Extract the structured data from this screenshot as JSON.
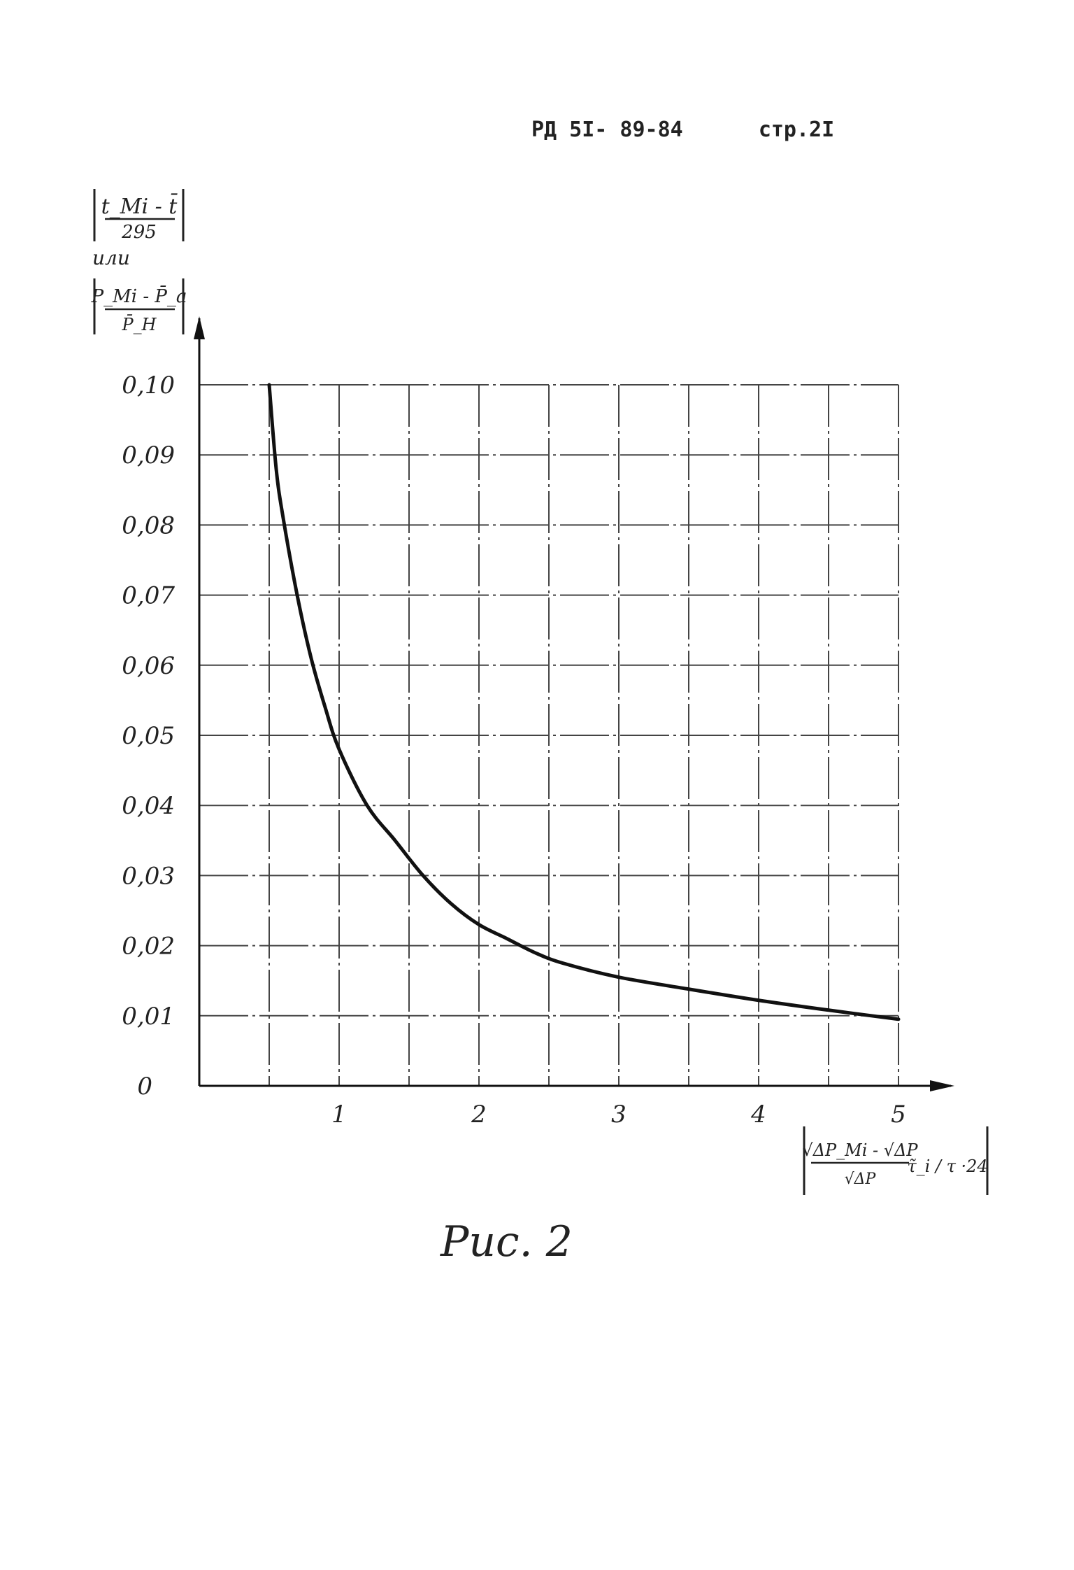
{
  "header": {
    "doc_code": "РД 5I- 89-84",
    "page": "стр.2I"
  },
  "caption": "Рис. 2",
  "chart_data": {
    "type": "line",
    "ylabel_top": {
      "numerator": "t_Mi - t̄",
      "denominator": "295"
    },
    "ylabel_or": "или",
    "ylabel_bottom": {
      "numerator": "P_Mi - P̄_a",
      "denominator": "P̄_H"
    },
    "xlabel": {
      "numerator": "√ΔP_Mi - √ΔP",
      "denominator": "√ΔP",
      "factor": "τ̃_i / τ ·24"
    },
    "xlim": [
      0,
      5
    ],
    "ylim": [
      0,
      0.1
    ],
    "x_ticks": [
      {
        "v": 1,
        "label": "1"
      },
      {
        "v": 2,
        "label": "2"
      },
      {
        "v": 3,
        "label": "3"
      },
      {
        "v": 4,
        "label": "4"
      },
      {
        "v": 5,
        "label": "5"
      }
    ],
    "y_ticks": [
      {
        "v": 0,
        "label": "0"
      },
      {
        "v": 0.01,
        "label": "0,01"
      },
      {
        "v": 0.02,
        "label": "0,02"
      },
      {
        "v": 0.03,
        "label": "0,03"
      },
      {
        "v": 0.04,
        "label": "0,04"
      },
      {
        "v": 0.05,
        "label": "0,05"
      },
      {
        "v": 0.06,
        "label": "0,06"
      },
      {
        "v": 0.07,
        "label": "0,07"
      },
      {
        "v": 0.08,
        "label": "0,08"
      },
      {
        "v": 0.09,
        "label": "0,09"
      },
      {
        "v": 0.1,
        "label": "0,10"
      }
    ],
    "grid_x": [
      0.5,
      1,
      1.5,
      2,
      2.5,
      3,
      3.5,
      4,
      4.5,
      5
    ],
    "grid_y": [
      0.01,
      0.02,
      0.03,
      0.04,
      0.05,
      0.06,
      0.07,
      0.08,
      0.09,
      0.1
    ],
    "grid": true,
    "series": [
      {
        "color": "#111111",
        "x": [
          0.5,
          0.55,
          0.6,
          0.7,
          0.8,
          0.9,
          1.0,
          1.2,
          1.4,
          1.6,
          1.8,
          2.0,
          2.2,
          2.4,
          2.6,
          3.0,
          3.5,
          4.0,
          4.5,
          5.0
        ],
        "y": [
          0.1,
          0.088,
          0.081,
          0.07,
          0.061,
          0.054,
          0.048,
          0.04,
          0.035,
          0.03,
          0.026,
          0.023,
          0.021,
          0.019,
          0.0175,
          0.0155,
          0.0138,
          0.0122,
          0.0108,
          0.0095
        ]
      }
    ]
  }
}
